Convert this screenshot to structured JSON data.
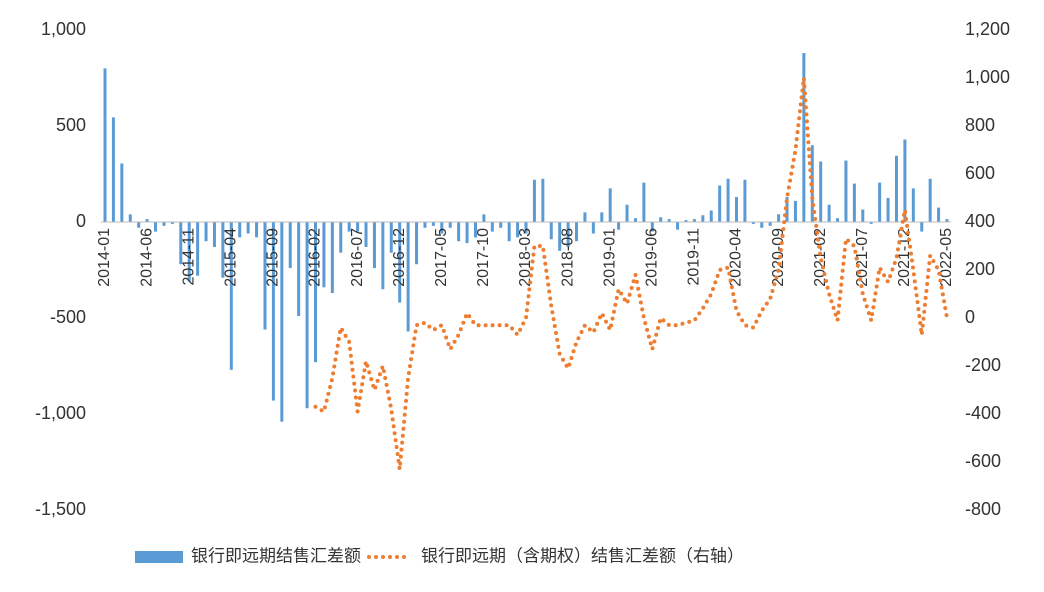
{
  "chart_data": {
    "type": "bar",
    "categories": [
      "2014-01",
      null,
      null,
      null,
      null,
      "2014-06",
      null,
      null,
      null,
      null,
      "2014-11",
      null,
      null,
      null,
      null,
      "2015-04",
      null,
      null,
      null,
      null,
      "2015-09",
      null,
      null,
      null,
      null,
      "2016-02",
      null,
      null,
      null,
      null,
      "2016-07",
      null,
      null,
      null,
      null,
      "2016-12",
      null,
      null,
      null,
      null,
      "2017-05",
      null,
      null,
      null,
      null,
      "2017-10",
      null,
      null,
      null,
      null,
      "2018-03",
      null,
      null,
      null,
      null,
      "2018-08",
      null,
      null,
      null,
      null,
      "2019-01",
      null,
      null,
      null,
      null,
      "2019-06",
      null,
      null,
      null,
      null,
      "2019-11",
      null,
      null,
      null,
      null,
      "2020-04",
      null,
      null,
      null,
      null,
      "2020-09",
      null,
      null,
      null,
      null,
      "2021-02",
      null,
      null,
      null,
      null,
      "2021-07",
      null,
      null,
      null,
      null,
      "2021-12",
      null,
      null,
      null,
      null,
      "2022-05"
    ],
    "series": [
      {
        "name": "银行即远期结售汇差额",
        "color": "#5b9bd5",
        "type": "bar",
        "values": [
          800,
          545,
          305,
          40,
          -30,
          15,
          -50,
          -20,
          -10,
          -220,
          -310,
          -280,
          -100,
          -130,
          -290,
          -770,
          -80,
          -60,
          -80,
          -560,
          -930,
          -1040,
          -240,
          -490,
          -970,
          -730,
          -340,
          -370,
          -160,
          -50,
          -50,
          -130,
          -240,
          -350,
          -160,
          -420,
          -570,
          -220,
          -30,
          -20,
          -60,
          -30,
          -100,
          -110,
          -80,
          40,
          -50,
          -30,
          -100,
          -80,
          -60,
          220,
          225,
          -90,
          -150,
          -130,
          -100,
          50,
          -60,
          50,
          175,
          -40,
          90,
          20,
          205,
          -50,
          25,
          15,
          -40,
          10,
          15,
          35,
          60,
          190,
          225,
          130,
          220,
          -10,
          -30,
          -20,
          40,
          130,
          110,
          880,
          400,
          315,
          90,
          20,
          320,
          200,
          65,
          -10,
          205,
          125,
          345,
          430,
          175,
          -50,
          225,
          75,
          15
        ]
      },
      {
        "name": "银行即远期（含期权）结售汇差额（右轴）",
        "color": "#ed7d31",
        "type": "line",
        "axis": "y2",
        "values": [
          null,
          null,
          null,
          null,
          null,
          null,
          null,
          null,
          null,
          null,
          null,
          null,
          null,
          null,
          null,
          null,
          null,
          null,
          null,
          null,
          null,
          null,
          null,
          null,
          null,
          -370,
          -390,
          -250,
          -40,
          -100,
          -390,
          -180,
          -300,
          -200,
          -380,
          -630,
          -250,
          -30,
          -20,
          -50,
          -30,
          -130,
          -70,
          20,
          -30,
          -30,
          -30,
          -30,
          -30,
          -70,
          0,
          300,
          300,
          50,
          -150,
          -210,
          -100,
          -30,
          -60,
          20,
          -50,
          120,
          60,
          180,
          0,
          -130,
          0,
          -30,
          -30,
          -20,
          -10,
          40,
          100,
          200,
          210,
          30,
          -30,
          -40,
          30,
          80,
          200,
          500,
          700,
          1000,
          500,
          250,
          100,
          -10,
          330,
          300,
          100,
          -10,
          210,
          150,
          250,
          450,
          200,
          -70,
          260,
          200,
          0
        ]
      }
    ],
    "ylim": [
      -1500,
      1000
    ],
    "yticks": [
      {
        "value": 1000,
        "label": "1,000"
      },
      500,
      0,
      -500,
      {
        "value": -1000,
        "label": "-1,000"
      },
      {
        "value": -1500,
        "label": "-1,500"
      }
    ],
    "y2lim": [
      -800,
      1200
    ],
    "y2ticks": [
      {
        "value": 1200,
        "label": "1,200"
      },
      {
        "value": 1000,
        "label": "1,000"
      },
      800,
      600,
      400,
      200,
      0,
      -200,
      -400,
      -600,
      -800
    ],
    "grid": false,
    "legend": "bottom"
  }
}
